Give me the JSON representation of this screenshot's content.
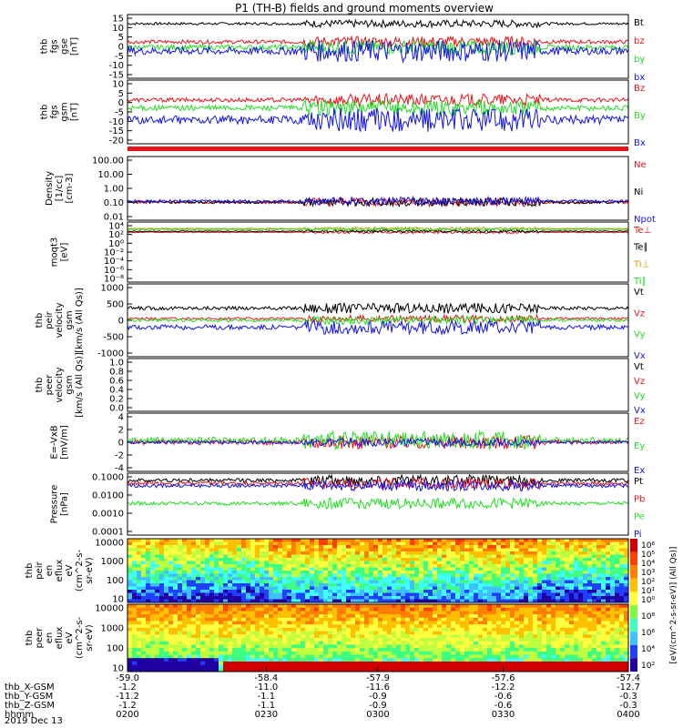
{
  "title": "P1 (TH-B) fields and ground moments overview",
  "colors": {
    "black": "#000000",
    "red": "#e8141c",
    "green": "#22dd22",
    "blue": "#1414e6"
  },
  "chart_data": [
    {
      "type": "line",
      "ylabel": [
        "thb",
        "fgs",
        "gse",
        "[nT]"
      ],
      "ylim": [
        -20,
        15
      ],
      "ticks": [
        15,
        10,
        5,
        0,
        -5,
        -10,
        -15
      ],
      "series": [
        {
          "name": "Bt",
          "color": "black",
          "level": 10,
          "amp": 2
        },
        {
          "name": "bz",
          "color": "red",
          "level": 0,
          "amp": 3
        },
        {
          "name": "by",
          "color": "green",
          "level": -3,
          "amp": 4
        },
        {
          "name": "bx",
          "color": "blue",
          "level": -5,
          "amp": 6
        }
      ]
    },
    {
      "type": "line",
      "ylabel": [
        "thb",
        "fgs",
        "gsm",
        "[nT]"
      ],
      "ylim": [
        -22,
        10
      ],
      "ticks": [
        10,
        5,
        0,
        -5,
        -10,
        -15,
        -20
      ],
      "series": [
        {
          "name": "Bz",
          "color": "red",
          "level": 0,
          "amp": 3
        },
        {
          "name": "By",
          "color": "green",
          "level": -4,
          "amp": 4
        },
        {
          "name": "Bx",
          "color": "blue",
          "level": -10,
          "amp": 6
        }
      ]
    },
    {
      "type": "line",
      "ylabel": [
        "Density",
        "[1/cc]",
        "[cm-3]"
      ],
      "ylim": [
        0.005,
        200
      ],
      "log": true,
      "ticks": [
        "100.00",
        "10.00",
        "1.00",
        "0.10",
        "0.01"
      ],
      "series": [
        {
          "name": "Ne",
          "color": "red",
          "level": 0.1,
          "amp": 1
        },
        {
          "name": "Ni",
          "color": "black",
          "level": 0.1,
          "amp": 1
        },
        {
          "name": "Npot",
          "color": "blue",
          "level": 0.12,
          "amp": 1
        }
      ]
    },
    {
      "type": "line",
      "ylabel": [
        "moqt3",
        "[eV]"
      ],
      "ylim": [
        1e-09,
        100000.0
      ],
      "log": true,
      "ticks": [
        "10⁴",
        "10²",
        "10⁰",
        "10⁻²",
        "10⁻⁴",
        "10⁻⁶",
        "10⁻⁸"
      ],
      "series": [
        {
          "name": "Te⊥",
          "color": "red",
          "level": 400,
          "amp": 1
        },
        {
          "name": "Te∥",
          "color": "black",
          "level": 700,
          "amp": 1
        },
        {
          "name": "Ti⊥",
          "color": "#d4a000",
          "level": 3000,
          "amp": 1
        },
        {
          "name": "Ti∥",
          "color": "green",
          "level": 2000,
          "amp": 1
        }
      ]
    },
    {
      "type": "line",
      "ylabel": [
        "thb",
        "peir",
        "velocity",
        "gsm",
        "[km/s (All Qs)]"
      ],
      "ylim": [
        -1100,
        1000
      ],
      "ticks": [
        "1000",
        "500",
        "0",
        "-500",
        "-1000"
      ],
      "series": [
        {
          "name": "Vt",
          "color": "black",
          "level": 300,
          "amp": 150
        },
        {
          "name": "Vz",
          "color": "red",
          "level": 0,
          "amp": 100
        },
        {
          "name": "Vy",
          "color": "green",
          "level": -50,
          "amp": 120
        },
        {
          "name": "Vx",
          "color": "blue",
          "level": -250,
          "amp": 200
        }
      ]
    },
    {
      "type": "line",
      "ylabel": [
        "thb",
        "peer",
        "velocity",
        "gsm",
        "[km/s (All Qs)]"
      ],
      "ylim": [
        0,
        1
      ],
      "ticks": [
        "1.0",
        "0.8",
        "0.6",
        "0.4",
        "0.2",
        "0.0"
      ],
      "series": [
        {
          "name": "Vt",
          "color": "black"
        },
        {
          "name": "Vz",
          "color": "red"
        },
        {
          "name": "Vy",
          "color": "green"
        },
        {
          "name": "Vx",
          "color": "blue"
        }
      ]
    },
    {
      "type": "line",
      "ylabel": [
        "E=-VxB",
        "[mV/m]"
      ],
      "ylim": [
        -4.3,
        4.3
      ],
      "ticks": [
        "4",
        "2",
        "0",
        "-2",
        "-4"
      ],
      "series": [
        {
          "name": "Ez",
          "color": "red",
          "level": 0,
          "amp": 1
        },
        {
          "name": "Ey",
          "color": "green",
          "level": 0.3,
          "amp": 1.3
        },
        {
          "name": "Ex",
          "color": "blue",
          "level": 0,
          "amp": 0.6
        }
      ]
    },
    {
      "type": "line",
      "ylabel": [
        "Pressure",
        "[nPa]"
      ],
      "ylim": [
        5e-05,
        0.15
      ],
      "log": true,
      "ticks": [
        "0.1000",
        "0.0100",
        "0.0010",
        "0.0001"
      ],
      "series": [
        {
          "name": "Pt",
          "color": "black",
          "level": 0.06,
          "amp": 1
        },
        {
          "name": "Pb",
          "color": "red",
          "level": 0.04,
          "amp": 1
        },
        {
          "name": "Pe",
          "color": "green",
          "level": 0.003,
          "amp": 1
        },
        {
          "name": "Pi",
          "color": "blue",
          "level": 0.03,
          "amp": 1
        }
      ]
    },
    {
      "type": "heatmap",
      "ylabel": [
        "thb",
        "peir",
        "en",
        "eflux",
        "eV",
        "(cm^2-s-",
        "sr-eV)"
      ],
      "ylim": [
        5,
        25000
      ],
      "log": true,
      "ticks": [
        "10000",
        "1000",
        "100",
        "10"
      ]
    },
    {
      "type": "heatmap",
      "ylabel": [
        "thb",
        "peer",
        "en",
        "eflux",
        "eV",
        "(cm^2-s-",
        "sr-eV)"
      ],
      "ylim": [
        5,
        25000
      ],
      "log": true,
      "ticks": [
        "10000",
        "1000",
        "100",
        "10"
      ]
    }
  ],
  "colorbar": {
    "ticks_top": [
      "10⁶",
      "10⁵",
      "10⁴",
      "10³",
      "10²",
      "10¹",
      "10⁰"
    ],
    "ticks_bottom": [
      "10⁸",
      "10⁶",
      "10⁴",
      "10²"
    ],
    "label": "[eV/(cm^2-s-sr-eV)] (All Qs)]"
  },
  "xaxis": {
    "ticks": [
      "-59.0",
      "-58.4",
      "-57.9",
      "-57.6",
      "-57.4"
    ],
    "rows": [
      {
        "label": "thb_X-GSM",
        "values": [
          "-1.2",
          "-11.0",
          "-11.6",
          "-12.2",
          "-12.7"
        ]
      },
      {
        "label": "thb_Y-GSM",
        "values": [
          "-11.2",
          "-1.1",
          "-0.9",
          "-0.6",
          "-0.3"
        ]
      },
      {
        "label": "thb_Z-GSM",
        "values": [
          "-1.2",
          "-1.1",
          "-0.9",
          "-0.6",
          "-0.3"
        ]
      },
      {
        "label": "hhmm",
        "values": [
          "0200",
          "0230",
          "0300",
          "0330",
          "0400"
        ]
      }
    ],
    "date": "2019 Dec 13"
  }
}
